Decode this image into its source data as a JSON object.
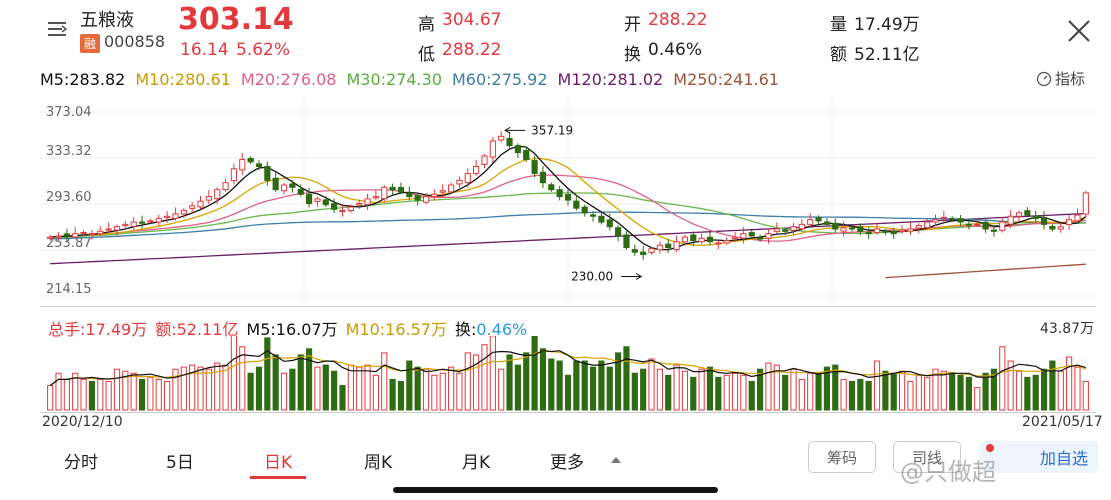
{
  "stock": {
    "name": "五粮液",
    "badge": "融",
    "code": "000858",
    "price": "303.14",
    "change": "16.14",
    "change_pct": "5.62%"
  },
  "quote": {
    "high_label": "高",
    "high": "304.67",
    "low_label": "低",
    "low": "288.22",
    "open_label": "开",
    "open": "288.22",
    "turnover_label": "换",
    "turnover": "0.46%",
    "volume_label": "量",
    "volume": "17.49万",
    "amount_label": "额",
    "amount": "52.11亿"
  },
  "indicator_label": "指标",
  "ma": {
    "m5": "M5:283.82",
    "m10": "M10:280.61",
    "m20": "M20:276.08",
    "m30": "M30:274.30",
    "m60": "M60:275.92",
    "m120": "M120:281.02",
    "m250": "M250:241.61"
  },
  "colors": {
    "up": "#e4393c",
    "down": "#2e6b12",
    "m5": "#111111",
    "m10": "#d8a400",
    "m20": "#e0608a",
    "m30": "#68b84c",
    "m60": "#3c7ea8",
    "m120": "#6a1c6a",
    "m250": "#a0523a"
  },
  "chart_data": {
    "type": "candlestick",
    "y_ticks": [
      "373.04",
      "333.32",
      "293.60",
      "253.87",
      "214.15"
    ],
    "ylim": [
      214.15,
      373.04
    ],
    "annotations": {
      "high_label": "357.19",
      "low_label": "230.00"
    },
    "date_start": "2020/12/10",
    "date_end": "2021/05/17",
    "close": [
      265,
      266,
      266,
      268,
      269,
      268,
      270,
      272,
      274,
      276,
      278,
      277,
      279,
      281,
      283,
      285,
      288,
      292,
      296,
      300,
      306,
      312,
      324,
      332,
      330,
      326,
      314,
      306,
      310,
      308,
      302,
      294,
      298,
      293,
      289,
      288,
      291,
      294,
      298,
      300,
      308,
      306,
      304,
      300,
      297,
      300,
      302,
      305,
      310,
      314,
      320,
      326,
      335,
      348,
      352,
      344,
      338,
      332,
      320,
      312,
      306,
      300,
      297,
      290,
      286,
      283,
      278,
      274,
      266,
      256,
      252,
      250,
      255,
      258,
      256,
      261,
      265,
      262,
      264,
      261,
      260,
      262,
      265,
      268,
      266,
      264,
      268,
      272,
      270,
      274,
      276,
      280,
      279,
      276,
      272,
      273,
      272,
      270,
      268,
      272,
      270,
      268,
      271,
      272,
      275,
      278,
      280,
      282,
      280,
      278,
      276,
      276,
      272,
      270,
      278,
      283,
      286,
      284,
      281,
      276,
      272,
      274,
      280,
      284,
      303.14
    ],
    "ma250_start": 230,
    "ma250_end": 241.61,
    "volume": {
      "header": {
        "total": "总手:17.49万",
        "amount": "额:52.11亿",
        "m5": "M5:16.07万",
        "m10": "M10:16.57万",
        "turnover_label": "换:",
        "turnover": "0.46%"
      },
      "max_label": "43.87万"
    }
  },
  "tabs": [
    "分时",
    "5日",
    "日K",
    "周K",
    "月K",
    "更多"
  ],
  "buttons": {
    "chips": "筹码",
    "signal": "司线",
    "add_watch": "加自选"
  },
  "watermark": "@只做超"
}
